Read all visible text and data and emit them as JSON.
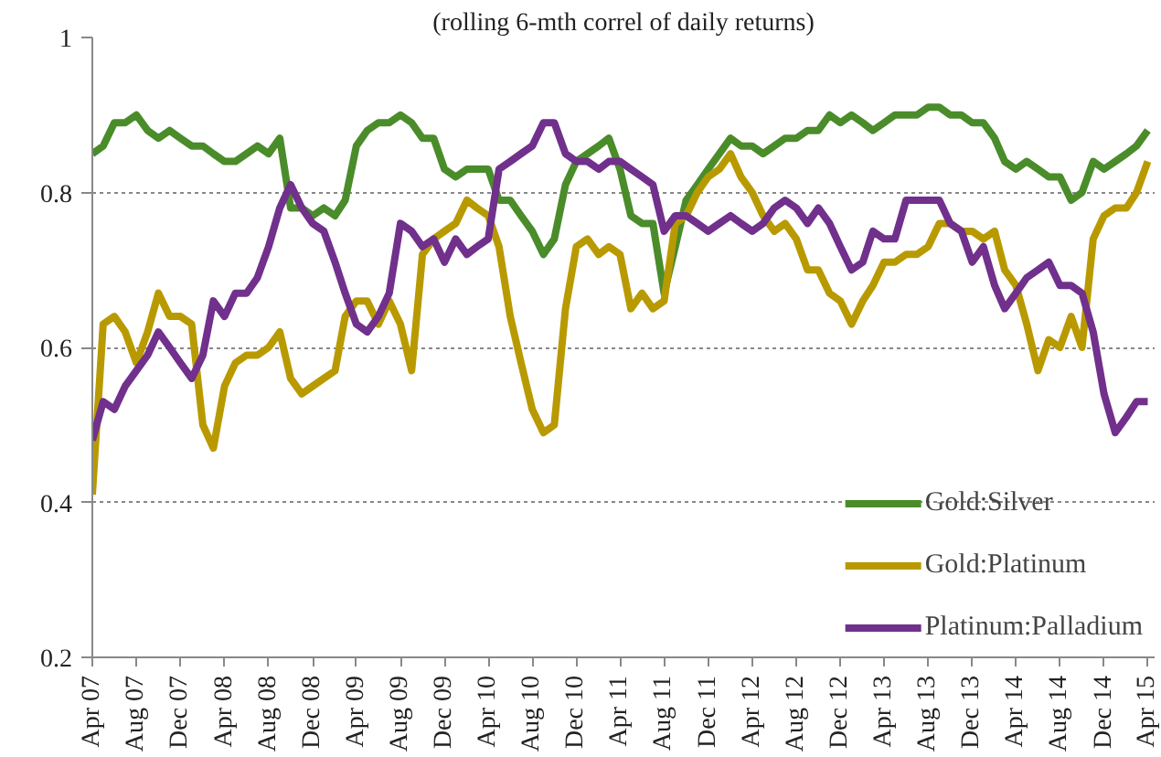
{
  "chart_data": {
    "type": "line",
    "title": "(rolling 6-mth correl of daily returns)",
    "x": [
      "2007-04",
      "2007-05",
      "2007-06",
      "2007-07",
      "2007-08",
      "2007-09",
      "2007-10",
      "2007-11",
      "2007-12",
      "2008-01",
      "2008-02",
      "2008-03",
      "2008-04",
      "2008-05",
      "2008-06",
      "2008-07",
      "2008-08",
      "2008-09",
      "2008-10",
      "2008-11",
      "2008-12",
      "2009-01",
      "2009-02",
      "2009-03",
      "2009-04",
      "2009-05",
      "2009-06",
      "2009-07",
      "2009-08",
      "2009-09",
      "2009-10",
      "2009-11",
      "2009-12",
      "2010-01",
      "2010-02",
      "2010-03",
      "2010-04",
      "2010-05",
      "2010-06",
      "2010-07",
      "2010-08",
      "2010-09",
      "2010-10",
      "2010-11",
      "2010-12",
      "2011-01",
      "2011-02",
      "2011-03",
      "2011-04",
      "2011-05",
      "2011-06",
      "2011-07",
      "2011-08",
      "2011-09",
      "2011-10",
      "2011-11",
      "2011-12",
      "2012-01",
      "2012-02",
      "2012-03",
      "2012-04",
      "2012-05",
      "2012-06",
      "2012-07",
      "2012-08",
      "2012-09",
      "2012-10",
      "2012-11",
      "2012-12",
      "2013-01",
      "2013-02",
      "2013-03",
      "2013-04",
      "2013-05",
      "2013-06",
      "2013-07",
      "2013-08",
      "2013-09",
      "2013-10",
      "2013-11",
      "2013-12",
      "2014-01",
      "2014-02",
      "2014-03",
      "2014-04",
      "2014-05",
      "2014-06",
      "2014-07",
      "2014-08",
      "2014-09",
      "2014-10",
      "2014-11",
      "2014-12",
      "2015-01",
      "2015-02",
      "2015-03",
      "2015-04"
    ],
    "series": [
      {
        "name": "Gold:Silver",
        "color": "#4a8c2a",
        "values": [
          0.85,
          0.86,
          0.89,
          0.89,
          0.9,
          0.88,
          0.87,
          0.88,
          0.87,
          0.86,
          0.86,
          0.85,
          0.84,
          0.84,
          0.85,
          0.86,
          0.85,
          0.87,
          0.78,
          0.78,
          0.77,
          0.78,
          0.77,
          0.79,
          0.86,
          0.88,
          0.89,
          0.89,
          0.9,
          0.89,
          0.87,
          0.87,
          0.83,
          0.82,
          0.83,
          0.83,
          0.83,
          0.79,
          0.79,
          0.77,
          0.75,
          0.72,
          0.74,
          0.81,
          0.84,
          0.85,
          0.86,
          0.87,
          0.83,
          0.77,
          0.76,
          0.76,
          0.67,
          0.73,
          0.79,
          0.81,
          0.83,
          0.85,
          0.87,
          0.86,
          0.86,
          0.85,
          0.86,
          0.87,
          0.87,
          0.88,
          0.88,
          0.9,
          0.89,
          0.9,
          0.89,
          0.88,
          0.89,
          0.9,
          0.9,
          0.9,
          0.91,
          0.91,
          0.9,
          0.9,
          0.89,
          0.89,
          0.87,
          0.84,
          0.83,
          0.84,
          0.83,
          0.82,
          0.82,
          0.79,
          0.8,
          0.84,
          0.83,
          0.84,
          0.85,
          0.86,
          0.88
        ]
      },
      {
        "name": "Gold:Platinum",
        "color": "#b89a00",
        "values": [
          0.41,
          0.63,
          0.64,
          0.62,
          0.58,
          0.62,
          0.67,
          0.64,
          0.64,
          0.63,
          0.5,
          0.47,
          0.55,
          0.58,
          0.59,
          0.59,
          0.6,
          0.62,
          0.56,
          0.54,
          0.55,
          0.56,
          0.57,
          0.64,
          0.66,
          0.66,
          0.63,
          0.66,
          0.63,
          0.57,
          0.72,
          0.74,
          0.75,
          0.76,
          0.79,
          0.78,
          0.77,
          0.73,
          0.64,
          0.58,
          0.52,
          0.49,
          0.5,
          0.65,
          0.73,
          0.74,
          0.72,
          0.73,
          0.72,
          0.65,
          0.67,
          0.65,
          0.66,
          0.76,
          0.77,
          0.8,
          0.82,
          0.83,
          0.85,
          0.82,
          0.8,
          0.77,
          0.75,
          0.76,
          0.74,
          0.7,
          0.7,
          0.67,
          0.66,
          0.63,
          0.66,
          0.68,
          0.71,
          0.71,
          0.72,
          0.72,
          0.73,
          0.76,
          0.76,
          0.75,
          0.75,
          0.74,
          0.75,
          0.7,
          0.68,
          0.63,
          0.57,
          0.61,
          0.6,
          0.64,
          0.6,
          0.74,
          0.77,
          0.78,
          0.78,
          0.8,
          0.84
        ]
      },
      {
        "name": "Platinum:Palladium",
        "color": "#70308c",
        "values": [
          0.48,
          0.53,
          0.52,
          0.55,
          0.57,
          0.59,
          0.62,
          0.6,
          0.58,
          0.56,
          0.59,
          0.66,
          0.64,
          0.67,
          0.67,
          0.69,
          0.73,
          0.78,
          0.81,
          0.78,
          0.76,
          0.75,
          0.71,
          0.67,
          0.63,
          0.62,
          0.64,
          0.67,
          0.76,
          0.75,
          0.73,
          0.74,
          0.71,
          0.74,
          0.72,
          0.73,
          0.74,
          0.83,
          0.84,
          0.85,
          0.86,
          0.89,
          0.89,
          0.85,
          0.84,
          0.84,
          0.83,
          0.84,
          0.84,
          0.83,
          0.82,
          0.81,
          0.75,
          0.77,
          0.77,
          0.76,
          0.75,
          0.76,
          0.77,
          0.76,
          0.75,
          0.76,
          0.78,
          0.79,
          0.78,
          0.76,
          0.78,
          0.76,
          0.73,
          0.7,
          0.71,
          0.75,
          0.74,
          0.74,
          0.79,
          0.79,
          0.79,
          0.79,
          0.76,
          0.75,
          0.71,
          0.73,
          0.68,
          0.65,
          0.67,
          0.69,
          0.7,
          0.71,
          0.68,
          0.68,
          0.67,
          0.62,
          0.54,
          0.49,
          0.51,
          0.53,
          0.53
        ]
      }
    ],
    "xlim": [
      "2007-04-01",
      "2015-04-20"
    ],
    "xticks": [
      {
        "value": "2007-04",
        "label": "Apr 07"
      },
      {
        "value": "2007-08",
        "label": "Aug 07"
      },
      {
        "value": "2007-12",
        "label": "Dec 07"
      },
      {
        "value": "2008-04",
        "label": "Apr 08"
      },
      {
        "value": "2008-08",
        "label": "Aug 08"
      },
      {
        "value": "2008-12",
        "label": "Dec 08"
      },
      {
        "value": "2009-04",
        "label": "Apr 09"
      },
      {
        "value": "2009-08",
        "label": "Aug 09"
      },
      {
        "value": "2009-12",
        "label": "Dec 09"
      },
      {
        "value": "2010-04",
        "label": "Apr 10"
      },
      {
        "value": "2010-08",
        "label": "Aug 10"
      },
      {
        "value": "2010-12",
        "label": "Dec 10"
      },
      {
        "value": "2011-04",
        "label": "Apr 11"
      },
      {
        "value": "2011-08",
        "label": "Aug 11"
      },
      {
        "value": "2011-12",
        "label": "Dec 11"
      },
      {
        "value": "2012-04",
        "label": "Apr 12"
      },
      {
        "value": "2012-08",
        "label": "Aug 12"
      },
      {
        "value": "2012-12",
        "label": "Dec 12"
      },
      {
        "value": "2013-04",
        "label": "Apr 13"
      },
      {
        "value": "2013-08",
        "label": "Aug 13"
      },
      {
        "value": "2013-12",
        "label": "Dec 13"
      },
      {
        "value": "2014-04",
        "label": "Apr 14"
      },
      {
        "value": "2014-08",
        "label": "Aug 14"
      },
      {
        "value": "2014-12",
        "label": "Dec 14"
      },
      {
        "value": "2015-04",
        "label": "Apr 15"
      }
    ],
    "ylim": [
      0.2,
      1
    ],
    "yticks": [
      0.2,
      0.4,
      0.6,
      0.8,
      1
    ],
    "grid": "y",
    "legend": "bottom right",
    "line_style": "solid"
  }
}
